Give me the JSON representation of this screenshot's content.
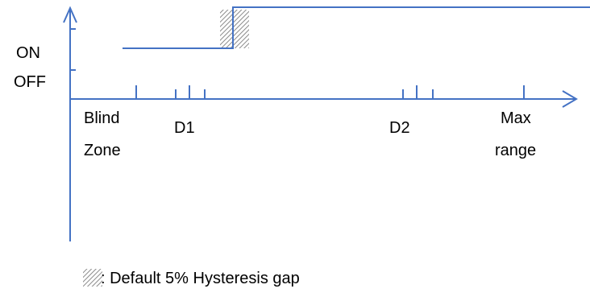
{
  "y_axis": {
    "on_label": "ON",
    "off_label": "OFF"
  },
  "x_axis": {
    "blind_zone_label_line1": "Blind",
    "blind_zone_label_line2": "Zone",
    "d1_label": "D1",
    "d2_label": "D2",
    "max_range_label_line1": "Max",
    "max_range_label_line2": "range"
  },
  "legend": {
    "text": ": Default 5% Hysteresis gap"
  },
  "colors": {
    "line": "#4472c4",
    "text": "#000000",
    "hatch": "#8a8a8a"
  }
}
